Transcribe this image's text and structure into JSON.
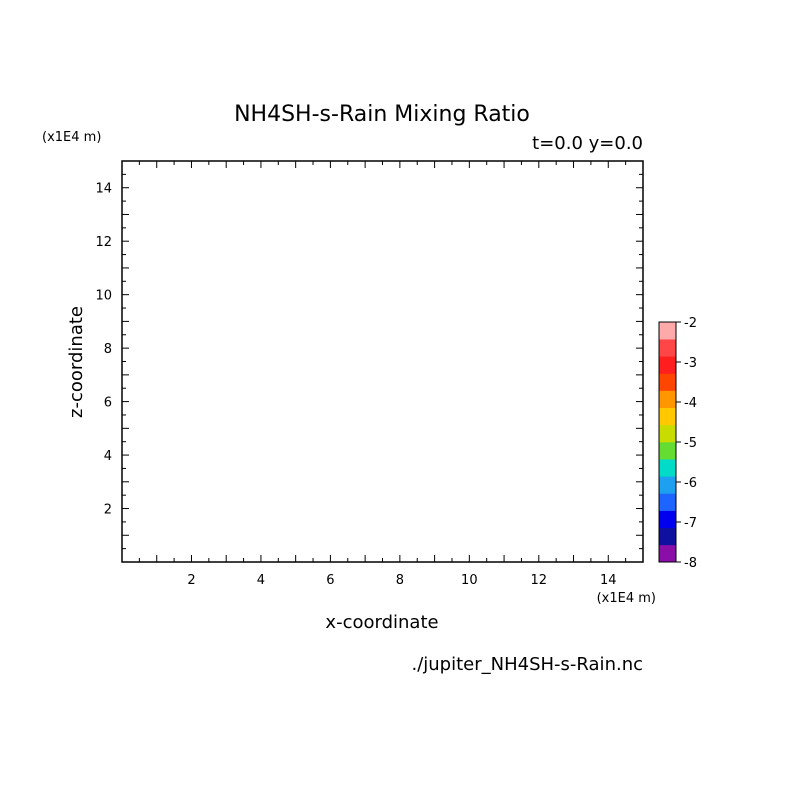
{
  "chart_data": {
    "type": "heatmap",
    "title": "NH4SH-s-Rain Mixing Ratio",
    "subtitle": "t=0.0 y=0.0",
    "xlabel": "x-coordinate",
    "ylabel": "z-coordinate",
    "x_unit_label": "(x1E4 m)",
    "y_unit_label": "(x1E4 m)",
    "source_label": "./jupiter_NH4SH-s-Rain.nc",
    "xlim": [
      0,
      15
    ],
    "ylim": [
      0,
      15
    ],
    "x_ticks": [
      "2",
      "4",
      "6",
      "8",
      "10",
      "12",
      "14"
    ],
    "y_ticks": [
      "2",
      "4",
      "6",
      "8",
      "10",
      "12",
      "14"
    ],
    "x_tick_values": [
      2,
      4,
      6,
      8,
      10,
      12,
      14
    ],
    "y_tick_values": [
      2,
      4,
      6,
      8,
      10,
      12,
      14
    ],
    "values": [],
    "grid": false,
    "colorbar": {
      "range": [
        -8,
        -2
      ],
      "labels": [
        "-2",
        "-3",
        "-4",
        "-5",
        "-6",
        "-7",
        "-8"
      ],
      "label_values": [
        -2,
        -3,
        -4,
        -5,
        -6,
        -7,
        -8
      ],
      "colors": [
        "#8a0fa8",
        "#1010a0",
        "#0000ee",
        "#1e64ff",
        "#1ea0f0",
        "#00dcc8",
        "#64dc32",
        "#c8dc00",
        "#ffc800",
        "#ff9600",
        "#ff4600",
        "#ff1e1e",
        "#ff4646",
        "#ffaaaa"
      ]
    }
  }
}
